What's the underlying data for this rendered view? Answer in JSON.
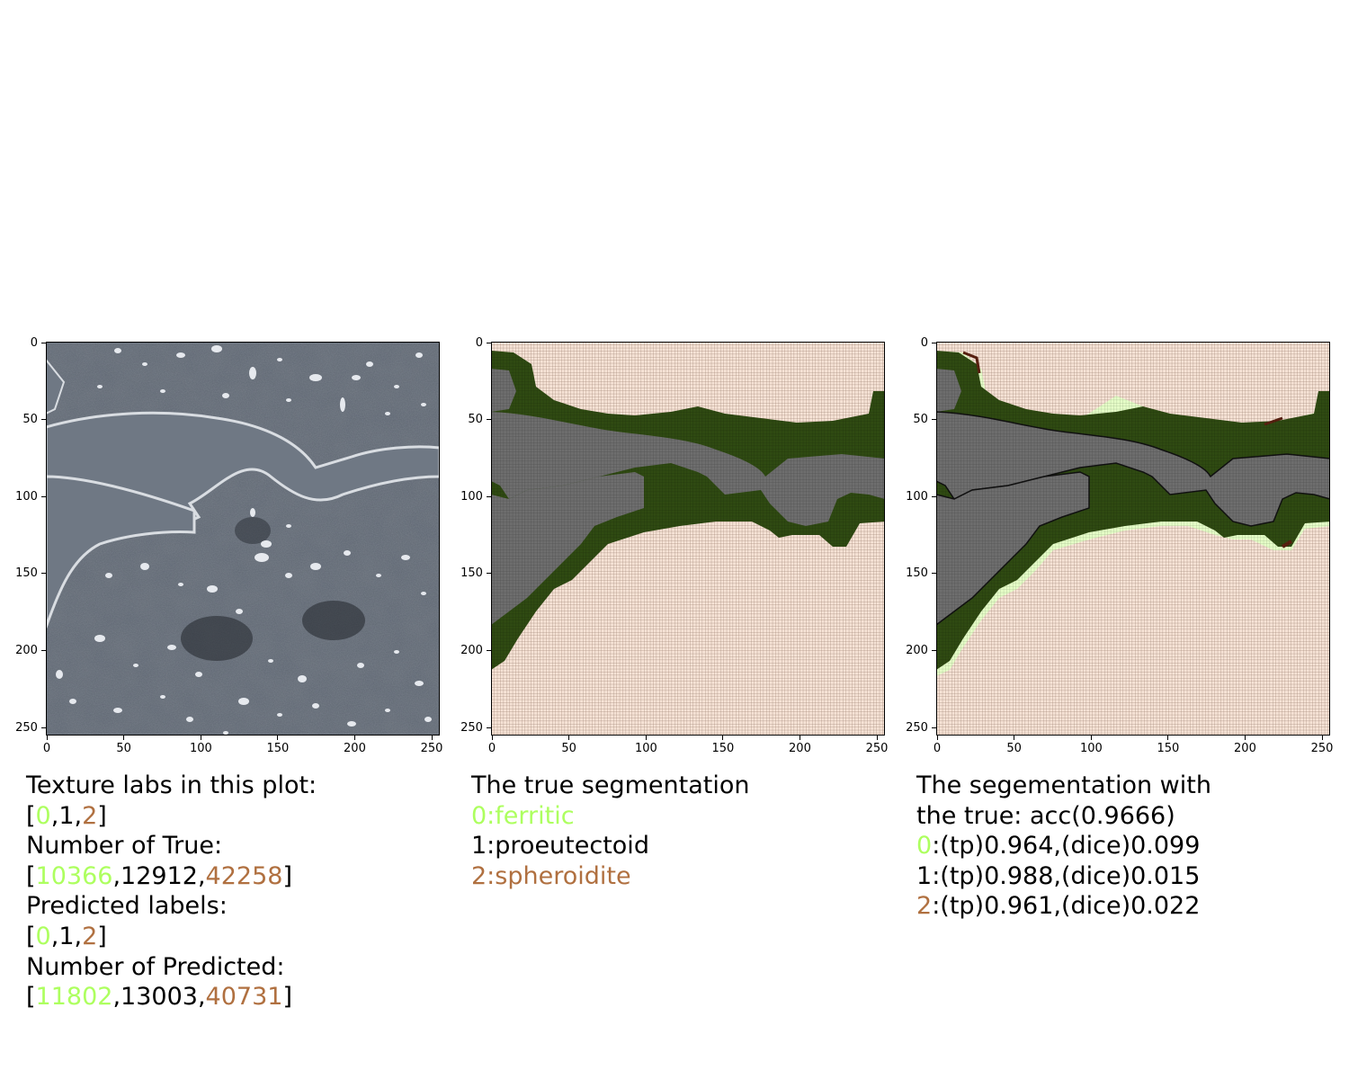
{
  "axes": {
    "x_ticks": [
      "0",
      "50",
      "100",
      "150",
      "200",
      "250"
    ],
    "y_ticks": [
      "0",
      "50",
      "100",
      "150",
      "200",
      "250"
    ]
  },
  "colors": {
    "label0": "#adff5f",
    "label1": "#000000",
    "label2": "#b07040",
    "ferrite_fill": "#2f4a12",
    "proeutectoid_fill": "#6e6e6e",
    "spheroidite_fill": "#f6e3d6",
    "prediction_error": "#e6ffc8"
  },
  "panel1": {
    "caption": {
      "line1": "Texture labs in this plot:",
      "labels_open": "[",
      "labels": [
        "0",
        "1",
        "2"
      ],
      "labels_close": "]",
      "line3": "Number of True:",
      "true_counts": [
        "10366",
        "12912",
        "42258"
      ],
      "line5": "Predicted labels:",
      "pred_labels": [
        "0",
        "1",
        "2"
      ],
      "line7": "Number of Predicted:",
      "pred_counts": [
        "11802",
        "13003",
        "40731"
      ],
      "sep": ","
    }
  },
  "panel2": {
    "caption": {
      "line1": "The true segmentation",
      "line2": "0:ferritic",
      "line3": "1:proeutectoid",
      "line4": "2:spheroidite"
    }
  },
  "panel3": {
    "caption": {
      "line1": "The segementation with",
      "line2": "the true: acc(0.9666)",
      "rows": [
        {
          "label": "0",
          "text": ":(tp)0.964,(dice)0.099"
        },
        {
          "label": "1",
          "text": ":(tp)0.988,(dice)0.015"
        },
        {
          "label": "2",
          "text": ":(tp)0.961,(dice)0.022"
        }
      ]
    }
  }
}
